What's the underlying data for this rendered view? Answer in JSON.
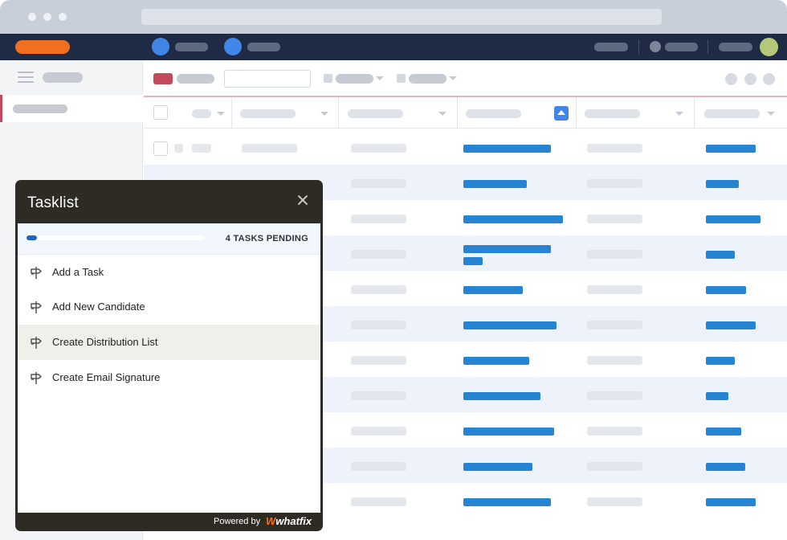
{
  "tasklist": {
    "title": "Tasklist",
    "progress_fraction": 0.06,
    "pending_label": "4 TASKS PENDING",
    "items": [
      {
        "label": "Add a Task",
        "icon": "signpost-icon"
      },
      {
        "label": "Add New Candidate",
        "icon": "signpost-icon"
      },
      {
        "label": "Create Distribution List",
        "icon": "signpost-icon",
        "highlighted": true
      },
      {
        "label": "Create Email Signature",
        "icon": "signpost-icon"
      }
    ],
    "footer": {
      "powered_by": "Powered by",
      "brand": "whatfix"
    }
  },
  "colors": {
    "topnav": "#1f2a44",
    "brand": "#f07020",
    "accent_blue": "#2684d3",
    "accent_red": "#c24a5c",
    "widget_dark": "#2e2b25"
  }
}
